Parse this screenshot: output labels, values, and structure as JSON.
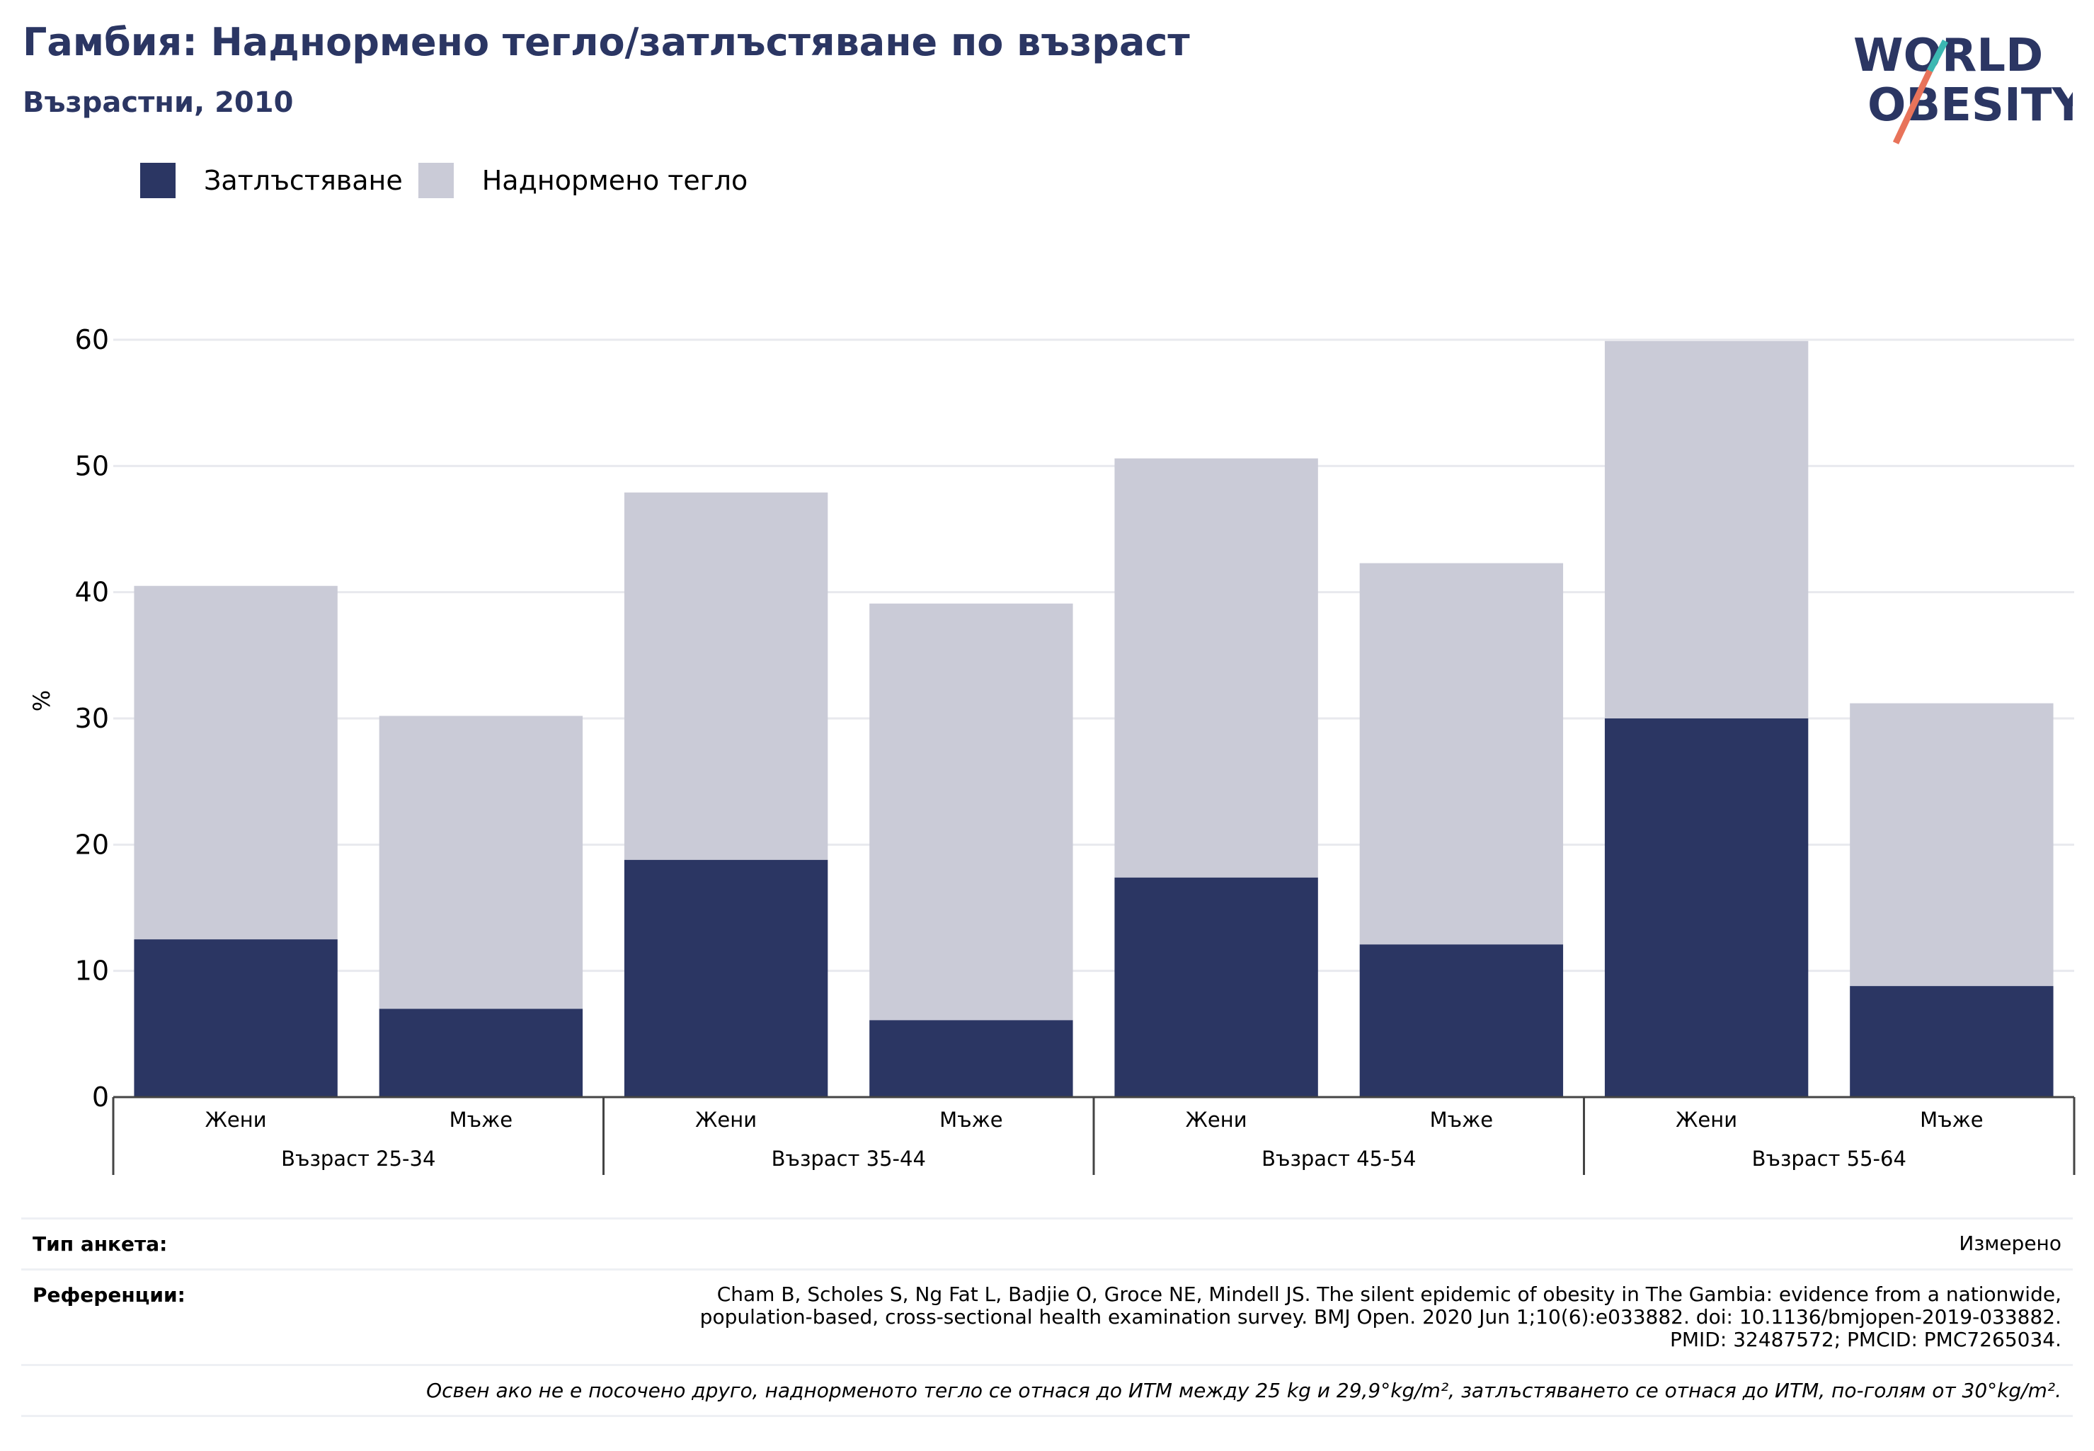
{
  "header": {
    "title": "Гамбия: Наднормено тегло/затлъстяване по възраст",
    "subtitle": "Възрастни, 2010"
  },
  "logo": {
    "line1": "WORLD",
    "line2": "OBESITY",
    "colors": {
      "navy": "#2b3663",
      "teal": "#3cb8b2",
      "coral": "#e8735a"
    }
  },
  "legend": [
    {
      "label": "Затлъстяване",
      "color": "#2b3663"
    },
    {
      "label": "Наднормено тегло",
      "color": "#cacbd7"
    }
  ],
  "chart_data": {
    "type": "bar",
    "stacked": true,
    "ylabel": "%",
    "ylim": [
      0,
      60
    ],
    "yticks": [
      0,
      10,
      20,
      30,
      40,
      50,
      60
    ],
    "grid": true,
    "groups": [
      {
        "label": "Възраст 25-34",
        "categories": [
          "Жени",
          "Мъже"
        ]
      },
      {
        "label": "Възраст 35-44",
        "categories": [
          "Жени",
          "Мъже"
        ]
      },
      {
        "label": "Възраст 45-54",
        "categories": [
          "Жени",
          "Мъже"
        ]
      },
      {
        "label": "Възраст 55-64",
        "categories": [
          "Жени",
          "Мъже"
        ]
      }
    ],
    "series": [
      {
        "name": "Затлъстяване",
        "color": "#2b3663",
        "values": [
          12.5,
          7.0,
          18.8,
          6.1,
          17.4,
          12.1,
          30.0,
          8.8
        ]
      },
      {
        "name": "Наднормено тегло",
        "color": "#cacbd7",
        "values": [
          28.0,
          23.2,
          29.1,
          33.0,
          33.2,
          30.2,
          29.9,
          22.4
        ]
      }
    ]
  },
  "footer": {
    "survey_label": "Тип анкета:",
    "survey_value": "Измерено",
    "refs_label": "Референции:",
    "refs_lines": [
      "Cham B, Scholes S, Ng Fat L, Badjie O, Groce NE, Mindell JS. The silent epidemic of obesity in The Gambia: evidence from a nationwide,",
      "population-based, cross-sectional health examination survey. BMJ Open. 2020 Jun 1;10(6):e033882. doi: 10.1136/bmjopen-2019-033882.",
      "PMID: 32487572; PMCID: PMC7265034."
    ],
    "note": "Освен ако не е посочено друго, наднорменото тегло се отнася до ИТМ между 25 kg и 29,9°kg/m², затлъстяването се отнася до ИТМ, по-голям от 30°kg/m²."
  }
}
